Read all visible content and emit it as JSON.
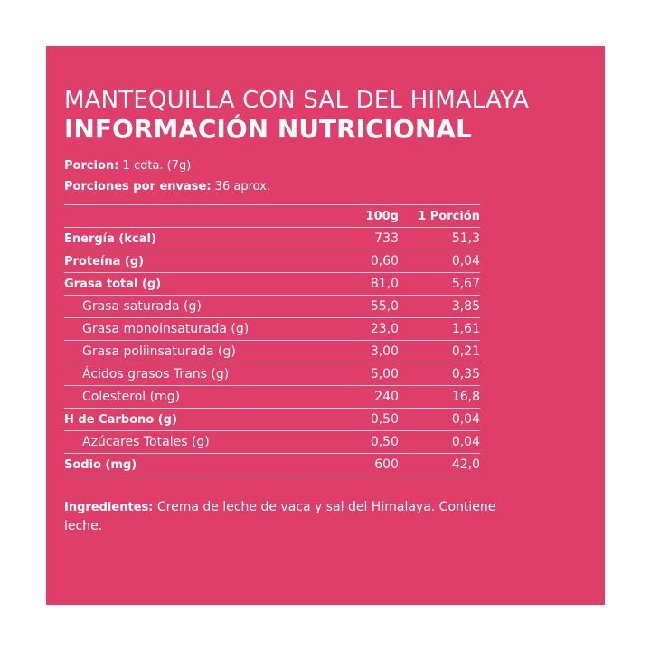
{
  "product_name": "MANTEQUILLA CON SAL DEL HIMALAYA",
  "heading": "INFORMACIÓN NUTRICIONAL",
  "serving": {
    "label": "Porcion:",
    "value": " 1 cdta. (7g)"
  },
  "servings_per_container": {
    "label": "Porciones por envase:",
    "value": " 36 aprox."
  },
  "table": {
    "headers": [
      "",
      "100g",
      "1 Porción"
    ],
    "rows": [
      {
        "name": "Energía (kcal)",
        "per100": "733",
        "portion": "51,3",
        "bold": true
      },
      {
        "name": "Proteína (g)",
        "per100": "0,60",
        "portion": "0,04",
        "bold": true
      },
      {
        "name": "Grasa total (g)",
        "per100": "81,0",
        "portion": "5,67",
        "bold": true
      },
      {
        "name": "Grasa saturada (g)",
        "per100": "55,0",
        "portion": "3,85",
        "bold": false
      },
      {
        "name": "Grasa monoinsaturada (g)",
        "per100": "23,0",
        "portion": "1,61",
        "bold": false
      },
      {
        "name": "Grasa poliinsaturada (g)",
        "per100": "3,00",
        "portion": "0,21",
        "bold": false
      },
      {
        "name": "Ácidos grasos Trans (g)",
        "per100": "5,00",
        "portion": "0,35",
        "bold": false
      },
      {
        "name": "Colesterol (mg)",
        "per100": "240",
        "portion": "16,8",
        "bold": false
      },
      {
        "name": "H de Carbono (g)",
        "per100": "0,50",
        "portion": "0,04",
        "bold": true
      },
      {
        "name": "Azúcares Totales (g)",
        "per100": "0,50",
        "portion": "0,04",
        "bold": false
      },
      {
        "name": "Sodio (mg)",
        "per100": "600",
        "portion": "42,0",
        "bold": true
      }
    ]
  },
  "ingredients": {
    "label": "Ingredientes:",
    "text": " Crema de leche de vaca y sal del Himalaya. Contiene leche."
  },
  "colors": {
    "panel": "#e03e6a",
    "text": "#ffffff",
    "background": "#ffffff"
  }
}
